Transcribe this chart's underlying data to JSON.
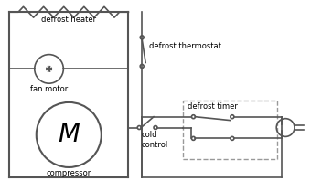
{
  "bg_color": "#ffffff",
  "wire_color": "#555555",
  "text_color": "#000000",
  "dashed_color": "#999999",
  "figsize": [
    3.4,
    2.1
  ],
  "dpi": 100,
  "labels": {
    "defrost_heater": "defrost heater",
    "defrost_thermostat": "defrost thermostat",
    "fan_motor": "fan motor",
    "compressor": "compressor",
    "cold_control": "cold\ncontrol",
    "defrost_timer": "defrost timer",
    "M": "M"
  }
}
